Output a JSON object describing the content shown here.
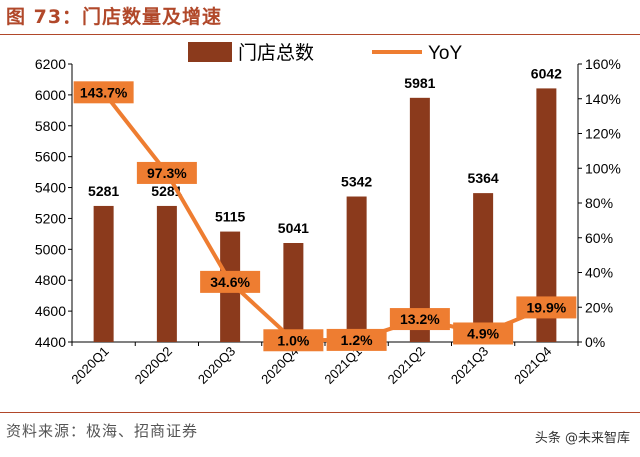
{
  "figure_title": "图 73：门店数量及增速",
  "source": "资料来源：极海、招商证券",
  "watermark": "头条 @未来智库",
  "chart_data": {
    "type": "bar",
    "categories": [
      "2020Q1",
      "2020Q2",
      "2020Q3",
      "2020Q4",
      "2021Q1",
      "2021Q2",
      "2021Q3",
      "2021Q4"
    ],
    "series": [
      {
        "name": "门店总数",
        "type": "bar",
        "axis": "left",
        "color": "#8b3a1c",
        "values": [
          5281,
          5281,
          5115,
          5041,
          5342,
          5981,
          5364,
          6042
        ],
        "labels": [
          "5281",
          "5281",
          "5115",
          "5041",
          "5342",
          "5981",
          "5364",
          "6042"
        ]
      },
      {
        "name": "YoY",
        "type": "line",
        "axis": "right",
        "color": "#ee7d31",
        "values": [
          143.7,
          97.3,
          34.6,
          1.0,
          1.2,
          13.2,
          4.9,
          19.9
        ],
        "labels": [
          "143.7%",
          "97.3%",
          "34.6%",
          "1.0%",
          "1.2%",
          "13.2%",
          "4.9%",
          "19.9%"
        ]
      }
    ],
    "y_left": {
      "min": 4400,
      "max": 6200,
      "ticks": [
        "4400",
        "4600",
        "4800",
        "5000",
        "5200",
        "5400",
        "5600",
        "5800",
        "6000",
        "6200"
      ]
    },
    "y_right": {
      "min": 0,
      "max": 160,
      "ticks": [
        "0%",
        "20%",
        "40%",
        "60%",
        "80%",
        "100%",
        "120%",
        "140%",
        "160%"
      ]
    },
    "legend": "top-center",
    "grid": false
  }
}
